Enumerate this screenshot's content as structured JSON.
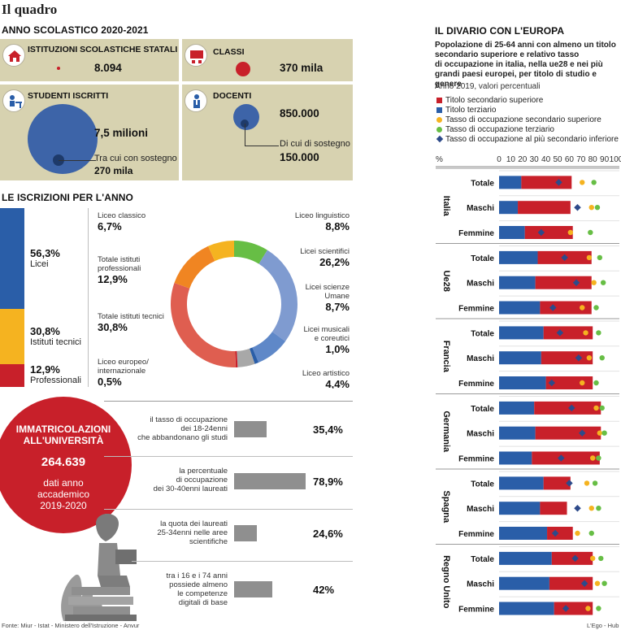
{
  "title": "Il quadro",
  "school": {
    "heading": "ANNO SCOLASTICO 2020-2021",
    "institutions": {
      "label": "ISTITUZIONI SCOLASTICHE STATALI",
      "value": "8.094"
    },
    "classes": {
      "label": "CLASSI",
      "value": "370 mila"
    },
    "students": {
      "label": "STUDENTI ISCRITTI",
      "value": "7,5 milioni",
      "sub_label": "Tra cui con sostegno",
      "sub_value": "270 mila"
    },
    "teachers": {
      "label": "DOCENTI",
      "value": "850.000",
      "sub_label": "Di cui di sostegno",
      "sub_value": "150.000"
    }
  },
  "enrollment": {
    "heading": "LE ISCRIZIONI PER L'ANNO",
    "bar_segments": [
      {
        "pct": "56,3%",
        "label": "Licei",
        "share": 56.3,
        "color": "#2a5ea8"
      },
      {
        "pct": "30,8%",
        "label": "Istituti tecnici",
        "share": 30.8,
        "color": "#f5b320"
      },
      {
        "pct": "12,9%",
        "label": "Professionali",
        "share": 12.9,
        "color": "#c8202a"
      }
    ]
  },
  "chart_data": [
    {
      "type": "pie",
      "labels": [
        "Liceo linguistico",
        "Licei scientifici",
        "Licei scienze Umane",
        "Licei musicali e coreutici",
        "Liceo artistico",
        "Liceo europeo/ internazionale",
        "Totale istituti tecnici",
        "Totale istituti professionali",
        "Liceo classico"
      ],
      "label_lines": [
        [
          "Liceo linguistico"
        ],
        [
          "Licei scientifici"
        ],
        [
          "Licei scienze",
          "Umane"
        ],
        [
          "Licei musicali",
          "e coreutici"
        ],
        [
          "Liceo artistico"
        ],
        [
          "Liceo europeo/",
          "internazionale"
        ],
        [
          "Totale istituti tecnici"
        ],
        [
          "Totale istituti",
          "professionali"
        ],
        [
          "Liceo classico"
        ]
      ],
      "values": [
        8.8,
        26.2,
        8.7,
        1.0,
        4.4,
        0.5,
        30.8,
        12.9,
        6.7
      ],
      "value_labels": [
        "8,8%",
        "26,2%",
        "8,7%",
        "1,0%",
        "4,4%",
        "0,5%",
        "30,8%",
        "12,9%",
        "6,7%"
      ],
      "colors": [
        "#67be45",
        "#7f9bd0",
        "#5f88c8",
        "#2a5ea8",
        "#a8a8a8",
        "#c8202a",
        "#df5e50",
        "#f08522",
        "#f5b320"
      ]
    },
    {
      "type": "bar",
      "title": "IL DIVARIO CON L'EUROPA",
      "subtitle": "Popolazione di 25-64 anni con almeno un titolo secondario superiore e relativo tasso di occupazione in italia, nella ue28 e nei più grandi paesi europei, per titolo di studio e genere",
      "subtitle_lines": [
        "Popolazione di 25-64 anni con almeno un titolo",
        "secondario superiore e relativo tasso",
        "di occupazione in italia, nella ue28 e nei più",
        "grandi paesi europei, per titolo di studio e genere"
      ],
      "note": "Anno 2019, valori percentuali",
      "ylabel": "%",
      "xticks": [
        "0",
        "10",
        "20",
        "30",
        "40",
        "50",
        "60",
        "70",
        "80",
        "90",
        "100"
      ],
      "xlim": [
        0,
        100
      ],
      "series_names": [
        "Titolo secondario superiore",
        "Titolo terziario",
        "Tasso di occupazione secondario superiore",
        "Tasso di occupazione terziario",
        "Tasso di occupazione al più secondario inferiore"
      ],
      "series_colors": [
        "#c8202a",
        "#2a5ea8",
        "#f5b320",
        "#67be45",
        "#2d4a8a"
      ],
      "groups": [
        {
          "name": "Italia",
          "rows": [
            {
              "label": "Totale",
              "terziario": 19,
              "secondario": 43,
              "occ_sec": 71,
              "occ_ter": 81,
              "occ_inf": 51
            },
            {
              "label": "Maschi",
              "terziario": 16,
              "secondario": 45,
              "occ_sec": 79,
              "occ_ter": 84,
              "occ_inf": 67
            },
            {
              "label": "Femmine",
              "terziario": 22,
              "secondario": 41,
              "occ_sec": 61,
              "occ_ter": 78,
              "occ_inf": 36
            }
          ]
        },
        {
          "name": "Ue28",
          "rows": [
            {
              "label": "Totale",
              "terziario": 33,
              "secondario": 46,
              "occ_sec": 77,
              "occ_ter": 86,
              "occ_inf": 56
            },
            {
              "label": "Maschi",
              "terziario": 31,
              "secondario": 48,
              "occ_sec": 81,
              "occ_ter": 89,
              "occ_inf": 66
            },
            {
              "label": "Femmine",
              "terziario": 35,
              "secondario": 44,
              "occ_sec": 71,
              "occ_ter": 83,
              "occ_inf": 46
            }
          ]
        },
        {
          "name": "Francia",
          "rows": [
            {
              "label": "Totale",
              "terziario": 38,
              "secondario": 42,
              "occ_sec": 74,
              "occ_ter": 85,
              "occ_inf": 52
            },
            {
              "label": "Maschi",
              "terziario": 36,
              "secondario": 44,
              "occ_sec": 77,
              "occ_ter": 88,
              "occ_inf": 68
            },
            {
              "label": "Femmine",
              "terziario": 40,
              "secondario": 40,
              "occ_sec": 71,
              "occ_ter": 83,
              "occ_inf": 45
            }
          ]
        },
        {
          "name": "Germania",
          "rows": [
            {
              "label": "Totale",
              "terziario": 30,
              "secondario": 57,
              "occ_sec": 83,
              "occ_ter": 88,
              "occ_inf": 62
            },
            {
              "label": "Maschi",
              "terziario": 31,
              "secondario": 56,
              "occ_sec": 86,
              "occ_ter": 90,
              "occ_inf": 71
            },
            {
              "label": "Femmine",
              "terziario": 28,
              "secondario": 58,
              "occ_sec": 80,
              "occ_ter": 85,
              "occ_inf": 53
            }
          ]
        },
        {
          "name": "Spagna",
          "rows": [
            {
              "label": "Totale",
              "terziario": 38,
              "secondario": 23,
              "occ_sec": 75,
              "occ_ter": 82,
              "occ_inf": 60
            },
            {
              "label": "Maschi",
              "terziario": 35,
              "secondario": 23,
              "occ_sec": 79,
              "occ_ter": 85,
              "occ_inf": 67
            },
            {
              "label": "Femmine",
              "terziario": 41,
              "secondario": 22,
              "occ_sec": 67,
              "occ_ter": 79,
              "occ_inf": 48
            }
          ]
        },
        {
          "name": "Regno Unito",
          "rows": [
            {
              "label": "Totale",
              "terziario": 45,
              "secondario": 35,
              "occ_sec": 80,
              "occ_ter": 87,
              "occ_inf": 65
            },
            {
              "label": "Maschi",
              "terziario": 43,
              "secondario": 37,
              "occ_sec": 84,
              "occ_ter": 90,
              "occ_inf": 73
            },
            {
              "label": "Femmine",
              "terziario": 47,
              "secondario": 33,
              "occ_sec": 76,
              "occ_ter": 85,
              "occ_inf": 57
            }
          ]
        }
      ]
    }
  ],
  "university": {
    "title_lines": [
      "IMMATRICOLAZIONI",
      "ALL'UNIVERSITÀ"
    ],
    "value": "264.639",
    "sub_lines": [
      "dati anno",
      "accademico",
      "2019-2020"
    ]
  },
  "stats": [
    {
      "lines": [
        "il tasso di occupazione",
        "dei 18-24enni",
        "che abbandonano gli studi"
      ],
      "value": "35,4%",
      "level": 35.4
    },
    {
      "lines": [
        "la percentuale",
        "di occupazione",
        "dei 30-40enni laureati"
      ],
      "value": "78,9%",
      "level": 78.9
    },
    {
      "lines": [
        "la quota dei laureati",
        "25-34enni nelle aree",
        "scientifiche"
      ],
      "value": "24,6%",
      "level": 24.6
    },
    {
      "lines": [
        "tra i 16 e i 74 anni",
        "possiede almeno",
        "le competenze",
        "digitali di base"
      ],
      "value": "42%",
      "level": 42
    }
  ],
  "footer": {
    "source": "Fonte: Miur - Istat - Ministero dell'Istruzione - Anvur",
    "credit": "L'Ego - Hub"
  }
}
